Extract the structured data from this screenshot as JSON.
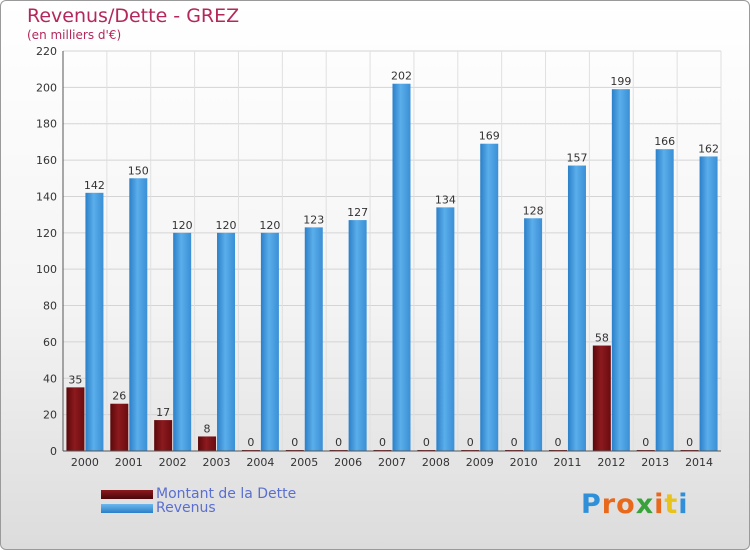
{
  "chart_data": {
    "type": "bar",
    "title": "Revenus/Dette - GREZ",
    "subtitle": "(en milliers d'€)",
    "xlabel": "",
    "ylabel": "",
    "ylim": [
      0,
      220
    ],
    "yticks": [
      0,
      20,
      40,
      60,
      80,
      100,
      120,
      140,
      160,
      180,
      200,
      220
    ],
    "grid": true,
    "legend_position": "bottom-left",
    "categories": [
      "2000",
      "2001",
      "2002",
      "2003",
      "2004",
      "2005",
      "2006",
      "2007",
      "2008",
      "2009",
      "2010",
      "2011",
      "2012",
      "2013",
      "2014"
    ],
    "series": [
      {
        "name": "Montant de la Dette",
        "color": "#7a0f12",
        "values": [
          35,
          26,
          17,
          8,
          0,
          0,
          0,
          0,
          0,
          0,
          0,
          0,
          58,
          0,
          0
        ]
      },
      {
        "name": "Revenus",
        "color": "#3b95dc",
        "values": [
          142,
          150,
          120,
          120,
          120,
          123,
          127,
          202,
          134,
          169,
          128,
          157,
          199,
          166,
          162
        ]
      }
    ]
  },
  "logo": {
    "letters": [
      "P",
      "r",
      "o",
      "x",
      "i",
      "t",
      "i"
    ],
    "colors": [
      "#2f8fd8",
      "#e8681c",
      "#e8681c",
      "#3aa23a",
      "#e8681c",
      "#e8c31c",
      "#2f8fd8"
    ]
  }
}
